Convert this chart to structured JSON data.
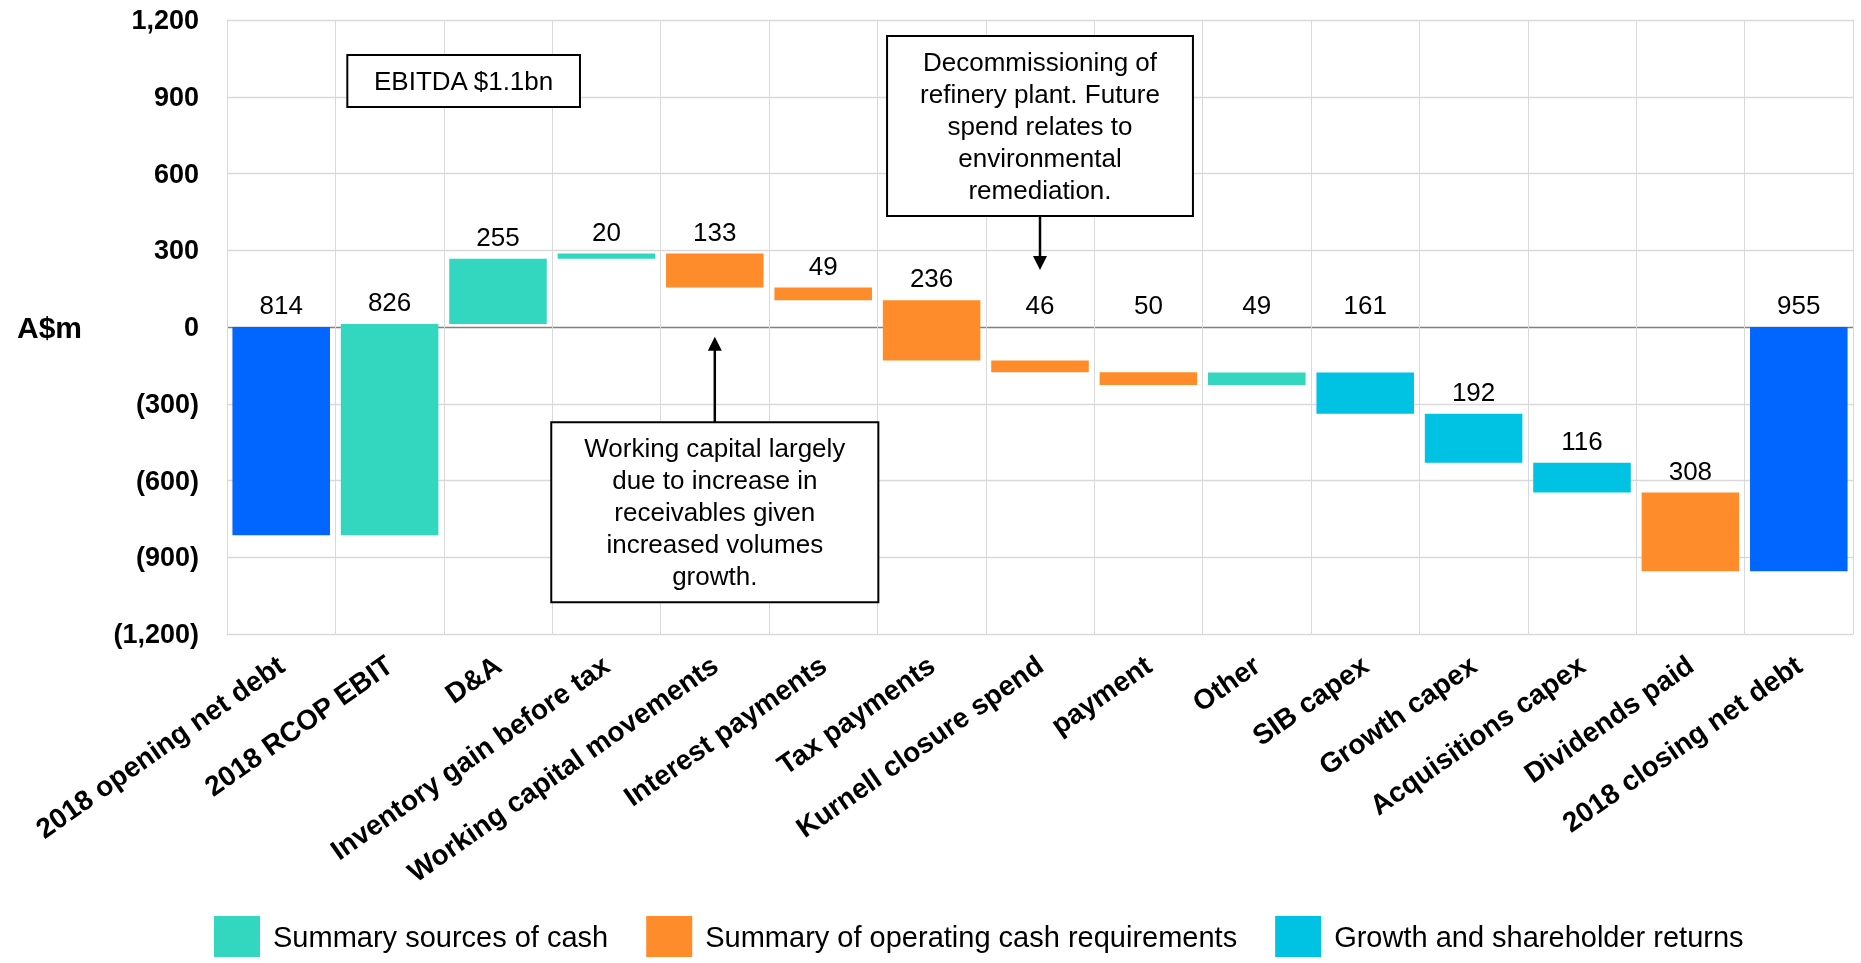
{
  "chart_data": {
    "type": "bar",
    "ylabel": "A$m",
    "categories": [
      "2018 opening net debt",
      "2018 RCOP EBIT",
      "D&A",
      "Inventory gain before tax",
      "Working capital movements",
      "Interest payments",
      "Tax payments",
      "Kurnell closure spend",
      "payment",
      "Other",
      "SIB capex",
      "Growth capex",
      "Acquisitions capex",
      "Dividends paid",
      "2018 closing net debt"
    ],
    "series": [
      {
        "color": "#0066ff",
        "values": [
          814,
          null,
          null,
          null,
          null,
          null,
          null,
          null,
          null,
          null,
          null,
          null,
          null,
          null,
          955
        ],
        "base": [
          -814,
          null,
          null,
          null,
          null,
          null,
          null,
          null,
          null,
          null,
          null,
          null,
          null,
          null,
          -955
        ]
      },
      {
        "name": "Summary sources of cash",
        "color": "#33d6be",
        "values": [
          null,
          826,
          255,
          20,
          null,
          null,
          null,
          null,
          null,
          49,
          null,
          null,
          null,
          null,
          null
        ],
        "base": [
          null,
          -814,
          12,
          267,
          null,
          null,
          null,
          null,
          null,
          -227,
          null,
          null,
          null,
          null,
          null
        ]
      },
      {
        "name": "Summary of operating cash requirements",
        "color": "#ff8c2a",
        "values": [
          null,
          null,
          null,
          null,
          133,
          49,
          236,
          46,
          50,
          null,
          null,
          null,
          null,
          308,
          null
        ],
        "base": [
          null,
          null,
          null,
          null,
          154,
          105,
          -131,
          -177,
          -227,
          null,
          null,
          null,
          null,
          -955,
          null
        ]
      },
      {
        "name": "Growth and shareholder returns",
        "color": "#00c2e3",
        "values": [
          null,
          null,
          null,
          null,
          null,
          null,
          null,
          null,
          null,
          null,
          161,
          192,
          116,
          null,
          null
        ],
        "base": [
          null,
          null,
          null,
          null,
          null,
          null,
          null,
          null,
          null,
          null,
          -339,
          -531,
          -647,
          null,
          null
        ]
      }
    ],
    "ylim": [
      -1200,
      1200
    ],
    "yticks": [
      {
        "value": -1200,
        "label": "(1,200)"
      },
      {
        "value": -900,
        "label": "(900)"
      },
      {
        "value": -600,
        "label": "(600)"
      },
      {
        "value": -300,
        "label": "(300)"
      },
      0,
      300,
      600,
      900,
      {
        "value": 1200,
        "label": "1,200"
      }
    ],
    "grid": true,
    "legend": "bottom",
    "data_labels": true,
    "annotations": [
      "EBITDA $1.1bn",
      "Working capital largely due to increase in receivables given increased volumes growth.",
      "Decommissioning of refinery plant. Future spend relates to environmental remediation."
    ]
  }
}
